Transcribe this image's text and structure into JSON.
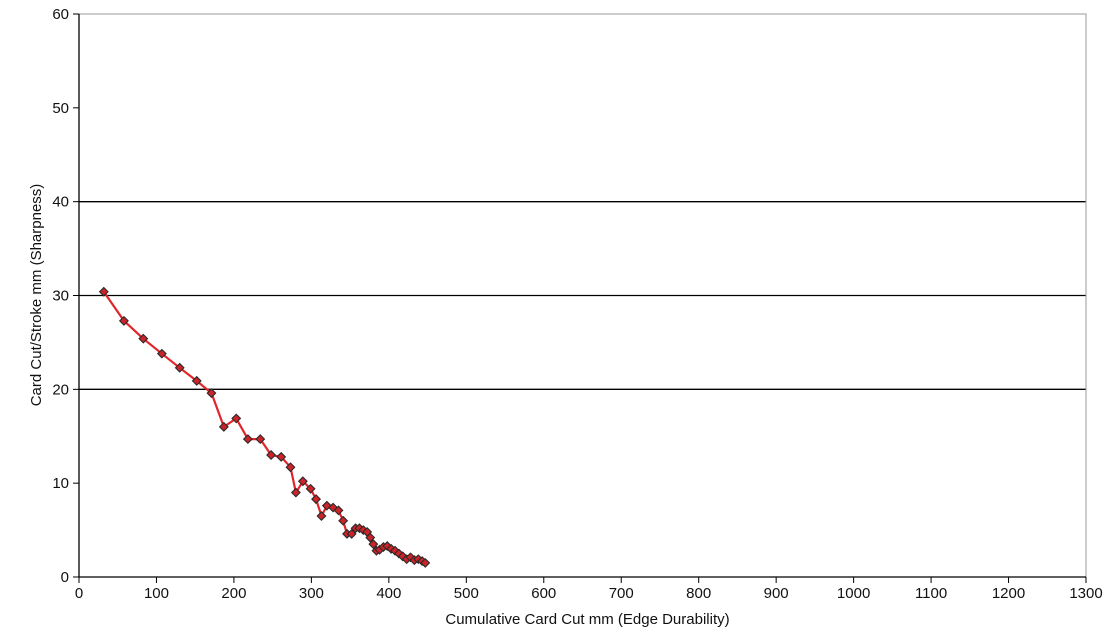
{
  "chart_data": {
    "type": "line",
    "title": "",
    "xlabel": "Cumulative Card Cut mm (Edge Durability)",
    "ylabel": "Card Cut/Stroke mm (Sharpness)",
    "xlim": [
      0,
      1300
    ],
    "ylim": [
      0,
      60
    ],
    "xticks": [
      0,
      100,
      200,
      300,
      400,
      500,
      600,
      700,
      800,
      900,
      1000,
      1100,
      1200,
      1300
    ],
    "yticks": [
      0,
      10,
      20,
      30,
      40,
      50,
      60
    ],
    "gridlines_y": [
      20,
      30,
      40
    ],
    "legend": "none",
    "line_color": "#e0262b",
    "marker_color": "#cc2229",
    "marker_edge_color": "#2a2a2a",
    "series": [
      {
        "x": [
          32,
          58,
          83,
          107,
          130,
          152,
          171,
          187,
          203,
          218,
          234,
          248,
          261,
          273,
          280,
          289,
          299,
          306,
          313,
          320,
          328,
          335,
          341,
          346,
          352,
          357,
          362,
          367,
          372,
          376,
          380,
          384,
          388,
          393,
          398,
          403,
          408,
          413,
          418,
          423,
          428,
          433,
          438,
          443,
          447
        ],
        "y": [
          30.4,
          27.3,
          25.4,
          23.8,
          22.3,
          20.9,
          19.6,
          16.0,
          16.9,
          14.7,
          14.7,
          13.0,
          12.8,
          11.7,
          9.0,
          10.2,
          9.4,
          8.3,
          6.5,
          7.6,
          7.4,
          7.1,
          6.0,
          4.6,
          4.6,
          5.2,
          5.2,
          5.0,
          4.8,
          4.2,
          3.5,
          2.8,
          2.9,
          3.2,
          3.3,
          3.0,
          2.8,
          2.5,
          2.2,
          1.9,
          2.1,
          1.8,
          1.9,
          1.7,
          1.5
        ]
      }
    ]
  }
}
